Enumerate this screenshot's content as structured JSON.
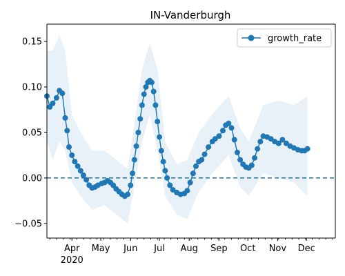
{
  "chart_data": {
    "type": "line",
    "title": "IN-Vanderburgh",
    "xlabel": "",
    "ylabel": "",
    "x_range": [
      "2020-03-06",
      "2020-12-31"
    ],
    "ylim": [
      -0.066,
      0.169
    ],
    "y_ticks": [
      -0.05,
      0.0,
      0.05,
      0.1,
      0.15
    ],
    "y_tick_labels": [
      "−0.05",
      "0.00",
      "0.05",
      "0.10",
      "0.15"
    ],
    "x_ticks": [
      {
        "date": "2020-04-01",
        "label": "Apr"
      },
      {
        "date": "2020-05-01",
        "label": "May"
      },
      {
        "date": "2020-06-01",
        "label": "Jun"
      },
      {
        "date": "2020-07-01",
        "label": "Jul"
      },
      {
        "date": "2020-08-01",
        "label": "Aug"
      },
      {
        "date": "2020-09-01",
        "label": "Sep"
      },
      {
        "date": "2020-10-01",
        "label": "Oct"
      },
      {
        "date": "2020-11-01",
        "label": "Nov"
      },
      {
        "date": "2020-12-01",
        "label": "Dec"
      }
    ],
    "x_year_label": "2020",
    "legend": {
      "placement": "top-right",
      "entries": [
        "growth_rate"
      ]
    },
    "grid": false,
    "reference_line": {
      "y": 0.0,
      "style": "dashed"
    },
    "colors": {
      "series": "#1f77b4",
      "band": "#1f77b4"
    },
    "series": [
      {
        "name": "growth_rate",
        "points": [
          [
            "2020-03-06",
            0.09
          ],
          [
            "2020-03-09",
            0.078
          ],
          [
            "2020-03-12",
            0.082
          ],
          [
            "2020-03-16",
            0.088
          ],
          [
            "2020-03-19",
            0.096
          ],
          [
            "2020-03-22",
            0.093
          ],
          [
            "2020-03-25",
            0.066
          ],
          [
            "2020-03-27",
            0.052
          ],
          [
            "2020-03-29",
            0.034
          ],
          [
            "2020-04-01",
            0.025
          ],
          [
            "2020-04-04",
            0.018
          ],
          [
            "2020-04-07",
            0.013
          ],
          [
            "2020-04-10",
            0.008
          ],
          [
            "2020-04-13",
            0.003
          ],
          [
            "2020-04-16",
            -0.002
          ],
          [
            "2020-04-19",
            -0.008
          ],
          [
            "2020-04-22",
            -0.011
          ],
          [
            "2020-04-25",
            -0.01
          ],
          [
            "2020-04-28",
            -0.008
          ],
          [
            "2020-05-02",
            -0.006
          ],
          [
            "2020-05-05",
            -0.005
          ],
          [
            "2020-05-08",
            -0.003
          ],
          [
            "2020-05-11",
            -0.005
          ],
          [
            "2020-05-14",
            -0.008
          ],
          [
            "2020-05-17",
            -0.012
          ],
          [
            "2020-05-20",
            -0.015
          ],
          [
            "2020-05-23",
            -0.018
          ],
          [
            "2020-05-26",
            -0.02
          ],
          [
            "2020-05-29",
            -0.018
          ],
          [
            "2020-06-01",
            -0.008
          ],
          [
            "2020-06-03",
            0.005
          ],
          [
            "2020-06-05",
            0.02
          ],
          [
            "2020-06-07",
            0.035
          ],
          [
            "2020-06-09",
            0.05
          ],
          [
            "2020-06-11",
            0.065
          ],
          [
            "2020-06-13",
            0.08
          ],
          [
            "2020-06-15",
            0.092
          ],
          [
            "2020-06-17",
            0.1
          ],
          [
            "2020-06-19",
            0.105
          ],
          [
            "2020-06-21",
            0.107
          ],
          [
            "2020-06-23",
            0.105
          ],
          [
            "2020-06-25",
            0.095
          ],
          [
            "2020-06-27",
            0.08
          ],
          [
            "2020-06-29",
            0.062
          ],
          [
            "2020-07-01",
            0.045
          ],
          [
            "2020-07-03",
            0.03
          ],
          [
            "2020-07-05",
            0.018
          ],
          [
            "2020-07-07",
            0.008
          ],
          [
            "2020-07-09",
            0.0
          ],
          [
            "2020-07-12",
            -0.008
          ],
          [
            "2020-07-15",
            -0.013
          ],
          [
            "2020-07-19",
            -0.016
          ],
          [
            "2020-07-23",
            -0.018
          ],
          [
            "2020-07-27",
            -0.017
          ],
          [
            "2020-07-30",
            -0.014
          ],
          [
            "2020-08-02",
            -0.005
          ],
          [
            "2020-08-05",
            0.005
          ],
          [
            "2020-08-08",
            0.013
          ],
          [
            "2020-08-11",
            0.018
          ],
          [
            "2020-08-14",
            0.02
          ],
          [
            "2020-08-17",
            0.026
          ],
          [
            "2020-08-21",
            0.034
          ],
          [
            "2020-08-25",
            0.04
          ],
          [
            "2020-08-28",
            0.043
          ],
          [
            "2020-09-01",
            0.046
          ],
          [
            "2020-09-05",
            0.052
          ],
          [
            "2020-09-08",
            0.058
          ],
          [
            "2020-09-11",
            0.06
          ],
          [
            "2020-09-14",
            0.055
          ],
          [
            "2020-09-17",
            0.042
          ],
          [
            "2020-09-20",
            0.028
          ],
          [
            "2020-09-23",
            0.02
          ],
          [
            "2020-09-26",
            0.015
          ],
          [
            "2020-09-29",
            0.012
          ],
          [
            "2020-10-02",
            0.011
          ],
          [
            "2020-10-05",
            0.014
          ],
          [
            "2020-10-08",
            0.022
          ],
          [
            "2020-10-11",
            0.032
          ],
          [
            "2020-10-14",
            0.04
          ],
          [
            "2020-10-17",
            0.046
          ],
          [
            "2020-10-21",
            0.045
          ],
          [
            "2020-10-25",
            0.043
          ],
          [
            "2020-10-29",
            0.04
          ],
          [
            "2020-11-02",
            0.038
          ],
          [
            "2020-11-06",
            0.042
          ],
          [
            "2020-11-10",
            0.038
          ],
          [
            "2020-11-14",
            0.035
          ],
          [
            "2020-11-18",
            0.033
          ],
          [
            "2020-11-22",
            0.031
          ],
          [
            "2020-11-26",
            0.03
          ],
          [
            "2020-11-29",
            0.03
          ],
          [
            "2020-12-02",
            0.032
          ]
        ],
        "band": [
          [
            "2020-03-06",
            0.04,
            0.14
          ],
          [
            "2020-03-12",
            0.02,
            0.14
          ],
          [
            "2020-03-19",
            0.04,
            0.157
          ],
          [
            "2020-03-25",
            0.03,
            0.14
          ],
          [
            "2020-04-01",
            -0.005,
            0.07
          ],
          [
            "2020-04-10",
            -0.02,
            0.05
          ],
          [
            "2020-04-22",
            -0.035,
            0.03
          ],
          [
            "2020-05-05",
            -0.03,
            0.03
          ],
          [
            "2020-05-17",
            -0.04,
            0.02
          ],
          [
            "2020-05-29",
            -0.05,
            0.01
          ],
          [
            "2020-06-05",
            -0.01,
            0.06
          ],
          [
            "2020-06-13",
            0.04,
            0.12
          ],
          [
            "2020-06-21",
            0.07,
            0.148
          ],
          [
            "2020-06-29",
            0.03,
            0.12
          ],
          [
            "2020-07-07",
            -0.02,
            0.04
          ],
          [
            "2020-07-19",
            -0.04,
            0.015
          ],
          [
            "2020-07-30",
            -0.045,
            0.02
          ],
          [
            "2020-08-11",
            -0.015,
            0.05
          ],
          [
            "2020-08-25",
            0.005,
            0.07
          ],
          [
            "2020-09-11",
            0.025,
            0.09
          ],
          [
            "2020-09-23",
            -0.01,
            0.055
          ],
          [
            "2020-10-02",
            -0.02,
            0.04
          ],
          [
            "2020-10-17",
            0.005,
            0.08
          ],
          [
            "2020-11-02",
            0.0,
            0.085
          ],
          [
            "2020-11-18",
            -0.005,
            0.08
          ],
          [
            "2020-12-02",
            -0.02,
            0.09
          ]
        ]
      }
    ]
  }
}
